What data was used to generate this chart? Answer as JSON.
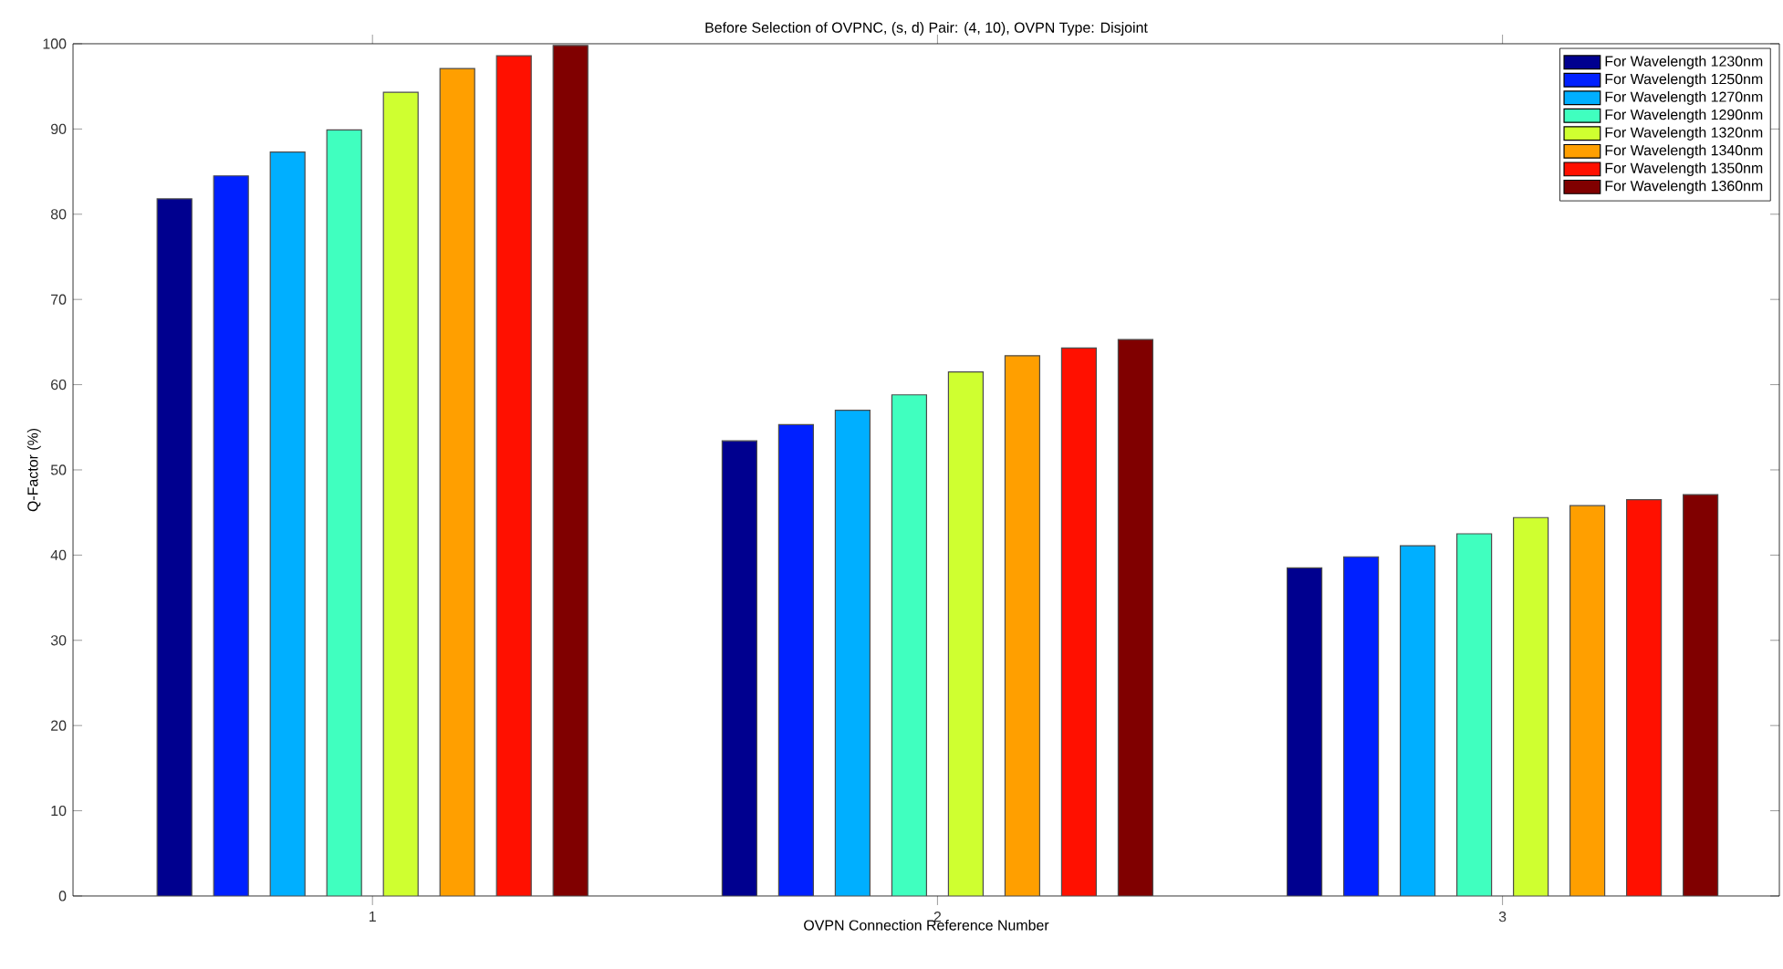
{
  "chart_data": {
    "type": "bar",
    "title": "Before Selection of OVPNC, (s, d) Pair: (4, 10), OVPN Type: Disjoint",
    "xlabel": "OVPN Connection Reference Number",
    "ylabel": "Q-Factor (%)",
    "categories": [
      "1",
      "2",
      "3"
    ],
    "series": [
      {
        "name": "For Wavelength 1230nm",
        "color": "#00008f",
        "values": [
          81.8,
          53.4,
          38.5
        ]
      },
      {
        "name": "For Wavelength 1250nm",
        "color": "#0020ff",
        "values": [
          84.5,
          55.3,
          39.8
        ]
      },
      {
        "name": "For Wavelength 1270nm",
        "color": "#00afff",
        "values": [
          87.3,
          57.0,
          41.1
        ]
      },
      {
        "name": "For Wavelength 1290nm",
        "color": "#40ffbf",
        "values": [
          89.9,
          58.8,
          42.5
        ]
      },
      {
        "name": "For Wavelength 1320nm",
        "color": "#cfff30",
        "values": [
          94.3,
          61.5,
          44.4
        ]
      },
      {
        "name": "For Wavelength 1340nm",
        "color": "#ff9f00",
        "values": [
          97.1,
          63.4,
          45.8
        ]
      },
      {
        "name": "For Wavelength 1350nm",
        "color": "#ff1000",
        "values": [
          98.6,
          64.3,
          46.5
        ]
      },
      {
        "name": "For Wavelength 1360nm",
        "color": "#800000",
        "values": [
          99.8,
          65.3,
          47.1
        ]
      }
    ],
    "ylim": [
      0,
      100
    ],
    "yticks": [
      0,
      10,
      20,
      30,
      40,
      50,
      60,
      70,
      80,
      90,
      100
    ],
    "grid": false,
    "legend": "top right"
  }
}
